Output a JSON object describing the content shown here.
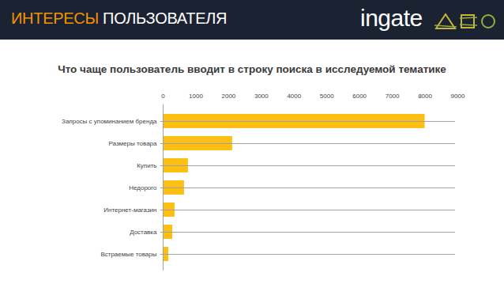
{
  "header": {
    "title_highlight": "ИНТЕРЕСЫ",
    "title_rest": "ПОЛЬЗОВАТЕЛЯ",
    "logo": "ingate"
  },
  "chart_data": {
    "type": "bar",
    "orientation": "horizontal",
    "title": "Что чаще пользователь вводит в строку поиска в исследуемой тематике",
    "categories": [
      "Запросы с упоминанием бренда",
      "Размеры товара",
      "Купить",
      "Недорого",
      "Интернет-магазин",
      "Доставка",
      "Встраемые товары"
    ],
    "values": [
      8000,
      2120,
      770,
      650,
      360,
      290,
      170
    ],
    "color": "#fdbf12",
    "xlim": [
      0,
      9000
    ],
    "xticks": [
      0,
      1000,
      2000,
      3000,
      4000,
      5000,
      6000,
      7000,
      8000,
      9000
    ],
    "grid": false
  }
}
